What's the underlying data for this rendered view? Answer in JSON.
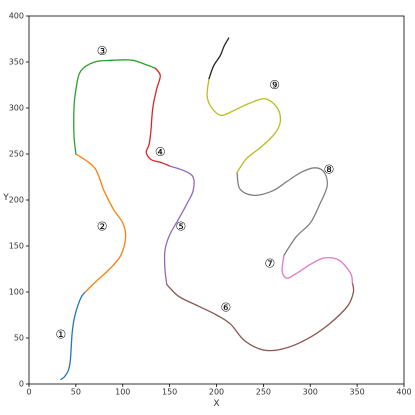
{
  "chart_data": {
    "type": "line",
    "title": "",
    "xlabel": "X",
    "ylabel": "Y",
    "xlim": [
      0,
      400
    ],
    "ylim": [
      0,
      400
    ],
    "xticks": [
      "0",
      "50",
      "100",
      "150",
      "200",
      "250",
      "300",
      "350",
      "400"
    ],
    "yticks": [
      "0",
      "50",
      "100",
      "150",
      "200",
      "250",
      "300",
      "350",
      "400"
    ],
    "grid": false,
    "legend": "none",
    "series": [
      {
        "label": "①",
        "color": "#1f77b4",
        "label_pos": [
          34,
          54
        ],
        "points": [
          [
            34,
            5
          ],
          [
            38,
            8
          ],
          [
            42,
            15
          ],
          [
            44,
            25
          ],
          [
            45,
            40
          ],
          [
            46,
            55
          ],
          [
            48,
            70
          ],
          [
            52,
            85
          ],
          [
            56,
            95
          ],
          [
            60,
            100
          ]
        ]
      },
      {
        "label": "②",
        "color": "#ff7f0e",
        "label_pos": [
          78,
          171
        ],
        "points": [
          [
            60,
            100
          ],
          [
            72,
            112
          ],
          [
            86,
            125
          ],
          [
            98,
            140
          ],
          [
            103,
            160
          ],
          [
            100,
            175
          ],
          [
            90,
            190
          ],
          [
            80,
            210
          ],
          [
            70,
            235
          ],
          [
            50,
            250
          ]
        ]
      },
      {
        "label": "③",
        "color": "#2ca02c",
        "label_pos": [
          78,
          362
        ],
        "points": [
          [
            50,
            250
          ],
          [
            48,
            270
          ],
          [
            48,
            300
          ],
          [
            50,
            320
          ],
          [
            55,
            340
          ],
          [
            70,
            350
          ],
          [
            90,
            352
          ],
          [
            110,
            352
          ],
          [
            125,
            347
          ],
          [
            135,
            343
          ]
        ]
      },
      {
        "label": "④",
        "color": "#d62728",
        "label_pos": [
          140,
          252
        ],
        "points": [
          [
            135,
            343
          ],
          [
            140,
            335
          ],
          [
            136,
            320
          ],
          [
            132,
            300
          ],
          [
            130,
            275
          ],
          [
            128,
            260
          ],
          [
            125,
            252
          ],
          [
            130,
            244
          ],
          [
            140,
            241
          ],
          [
            150,
            237
          ]
        ]
      },
      {
        "label": "⑤",
        "color": "#9467bd",
        "label_pos": [
          162,
          171
        ],
        "points": [
          [
            150,
            237
          ],
          [
            165,
            232
          ],
          [
            175,
            225
          ],
          [
            175,
            210
          ],
          [
            168,
            195
          ],
          [
            160,
            180
          ],
          [
            150,
            162
          ],
          [
            145,
            145
          ],
          [
            145,
            125
          ],
          [
            147,
            108
          ]
        ]
      },
      {
        "label": "⑥",
        "color": "#8c564b",
        "label_pos": [
          210,
          83
        ],
        "points": [
          [
            147,
            108
          ],
          [
            160,
            95
          ],
          [
            180,
            85
          ],
          [
            200,
            75
          ],
          [
            215,
            65
          ],
          [
            230,
            47
          ],
          [
            250,
            37
          ],
          [
            270,
            38
          ],
          [
            295,
            48
          ],
          [
            320,
            65
          ],
          [
            340,
            85
          ],
          [
            346,
            100
          ],
          [
            345,
            110
          ]
        ]
      },
      {
        "label": "⑦",
        "color": "#e377c2",
        "label_pos": [
          257,
          131
        ],
        "points": [
          [
            345,
            110
          ],
          [
            344,
            118
          ],
          [
            340,
            125
          ],
          [
            330,
            135
          ],
          [
            315,
            137
          ],
          [
            300,
            130
          ],
          [
            285,
            120
          ],
          [
            275,
            115
          ],
          [
            270,
            123
          ],
          [
            272,
            140
          ]
        ]
      },
      {
        "label": "⑧",
        "color": "#7f7f7f",
        "label_pos": [
          320,
          233
        ],
        "points": [
          [
            272,
            140
          ],
          [
            285,
            160
          ],
          [
            300,
            175
          ],
          [
            310,
            195
          ],
          [
            318,
            215
          ],
          [
            315,
            230
          ],
          [
            305,
            235
          ],
          [
            290,
            230
          ],
          [
            275,
            220
          ],
          [
            260,
            210
          ],
          [
            240,
            205
          ],
          [
            225,
            212
          ],
          [
            222,
            230
          ]
        ]
      },
      {
        "label": "⑨",
        "color": "#bcbd22",
        "label_pos": [
          262,
          325
        ],
        "points": [
          [
            222,
            230
          ],
          [
            232,
            245
          ],
          [
            248,
            258
          ],
          [
            262,
            272
          ],
          [
            268,
            285
          ],
          [
            265,
            300
          ],
          [
            252,
            310
          ],
          [
            235,
            305
          ],
          [
            220,
            298
          ],
          [
            205,
            292
          ],
          [
            195,
            300
          ],
          [
            190,
            313
          ],
          [
            192,
            332
          ]
        ]
      },
      {
        "label": "",
        "color": "#222222",
        "label_pos": [
          0,
          0
        ],
        "points": [
          [
            192,
            332
          ],
          [
            197,
            346
          ],
          [
            204,
            357
          ],
          [
            208,
            367
          ],
          [
            213,
            376
          ]
        ]
      }
    ]
  }
}
